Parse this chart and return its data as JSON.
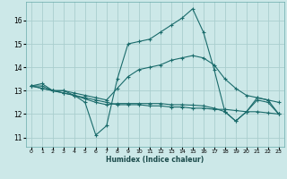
{
  "xlabel": "Humidex (Indice chaleur)",
  "background_color": "#cce8e8",
  "grid_color": "#aacece",
  "line_color": "#1a6b6b",
  "x_ticks": [
    0,
    1,
    2,
    3,
    4,
    5,
    6,
    7,
    8,
    9,
    10,
    11,
    12,
    13,
    14,
    15,
    16,
    17,
    18,
    19,
    20,
    21,
    22,
    23
  ],
  "y_ticks": [
    11,
    12,
    13,
    14,
    15,
    16
  ],
  "ylim": [
    10.6,
    16.8
  ],
  "xlim": [
    -0.5,
    23.5
  ],
  "series": [
    {
      "x": [
        0,
        1,
        2,
        3,
        4,
        5,
        6,
        7,
        8,
        9,
        10,
        11,
        12,
        13,
        14,
        15,
        16,
        17,
        18,
        19,
        20,
        21,
        22,
        23
      ],
      "y": [
        13.2,
        13.3,
        13.0,
        13.0,
        12.8,
        12.5,
        11.1,
        11.5,
        13.5,
        15.0,
        15.1,
        15.2,
        15.5,
        15.8,
        16.1,
        16.5,
        15.5,
        13.9,
        12.1,
        11.7,
        12.1,
        12.7,
        12.6,
        12.0
      ]
    },
    {
      "x": [
        0,
        1,
        2,
        3,
        4,
        5,
        6,
        7,
        8,
        9,
        10,
        11,
        12,
        13,
        14,
        15,
        16,
        17,
        18,
        19,
        20,
        21,
        22,
        23
      ],
      "y": [
        13.2,
        13.2,
        13.0,
        13.0,
        12.9,
        12.8,
        12.7,
        12.6,
        13.1,
        13.6,
        13.9,
        14.0,
        14.1,
        14.3,
        14.4,
        14.5,
        14.4,
        14.1,
        13.5,
        13.1,
        12.8,
        12.7,
        12.6,
        12.5
      ]
    },
    {
      "x": [
        0,
        1,
        2,
        3,
        4,
        5,
        6,
        7,
        8,
        9,
        10,
        11,
        12,
        13,
        14,
        15,
        16,
        17,
        18,
        19,
        20,
        21,
        22,
        23
      ],
      "y": [
        13.2,
        13.1,
        13.0,
        12.9,
        12.8,
        12.7,
        12.6,
        12.5,
        12.4,
        12.4,
        12.4,
        12.35,
        12.35,
        12.3,
        12.3,
        12.25,
        12.25,
        12.2,
        12.2,
        12.15,
        12.1,
        12.1,
        12.05,
        12.0
      ]
    },
    {
      "x": [
        0,
        1,
        2,
        3,
        4,
        5,
        6,
        7,
        8,
        9,
        10,
        11,
        12,
        13,
        14,
        15,
        16,
        17,
        18,
        19,
        20,
        21,
        22,
        23
      ],
      "y": [
        13.2,
        13.1,
        13.0,
        12.9,
        12.8,
        12.65,
        12.5,
        12.4,
        12.45,
        12.45,
        12.45,
        12.45,
        12.45,
        12.4,
        12.4,
        12.38,
        12.35,
        12.25,
        12.1,
        11.7,
        12.1,
        12.6,
        12.5,
        12.0
      ]
    }
  ]
}
